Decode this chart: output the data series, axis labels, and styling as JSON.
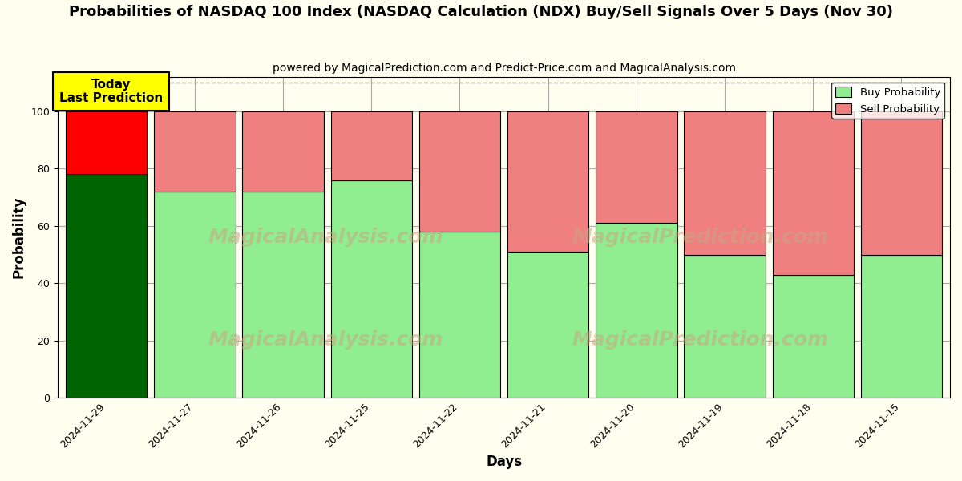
{
  "title": "Probabilities of NASDAQ 100 Index (NASDAQ Calculation (NDX) Buy/Sell Signals Over 5 Days (Nov 30)",
  "subtitle": "powered by MagicalPrediction.com and Predict-Price.com and MagicalAnalysis.com",
  "xlabel": "Days",
  "ylabel": "Probability",
  "dates": [
    "2024-11-29",
    "2024-11-27",
    "2024-11-26",
    "2024-11-25",
    "2024-11-22",
    "2024-11-21",
    "2024-11-20",
    "2024-11-19",
    "2024-11-18",
    "2024-11-15"
  ],
  "buy_values": [
    78,
    72,
    72,
    76,
    58,
    51,
    61,
    50,
    43,
    50
  ],
  "sell_values": [
    22,
    28,
    28,
    24,
    42,
    49,
    39,
    50,
    57,
    50
  ],
  "buy_colors": [
    "#006400",
    "#90EE90",
    "#90EE90",
    "#90EE90",
    "#90EE90",
    "#90EE90",
    "#90EE90",
    "#90EE90",
    "#90EE90",
    "#90EE90"
  ],
  "sell_colors": [
    "#FF0000",
    "#F08080",
    "#F08080",
    "#F08080",
    "#F08080",
    "#F08080",
    "#F08080",
    "#F08080",
    "#F08080",
    "#F08080"
  ],
  "legend_buy_color": "#90EE90",
  "legend_sell_color": "#F08080",
  "today_box_color": "#FFFF00",
  "today_label": "Today\nLast Prediction",
  "ylim": [
    0,
    112
  ],
  "yticks": [
    0,
    20,
    40,
    60,
    80,
    100
  ],
  "dashed_line_y": 110,
  "background_color": "#fffff0",
  "plot_bg_color": "#fffff0",
  "grid_color": "#aaaaaa",
  "watermark1": "MagicalAnalysis.com",
  "watermark2": "MagicalPrediction.com",
  "title_fontsize": 13,
  "subtitle_fontsize": 10,
  "axis_label_fontsize": 12,
  "tick_fontsize": 9,
  "bar_width": 0.92
}
